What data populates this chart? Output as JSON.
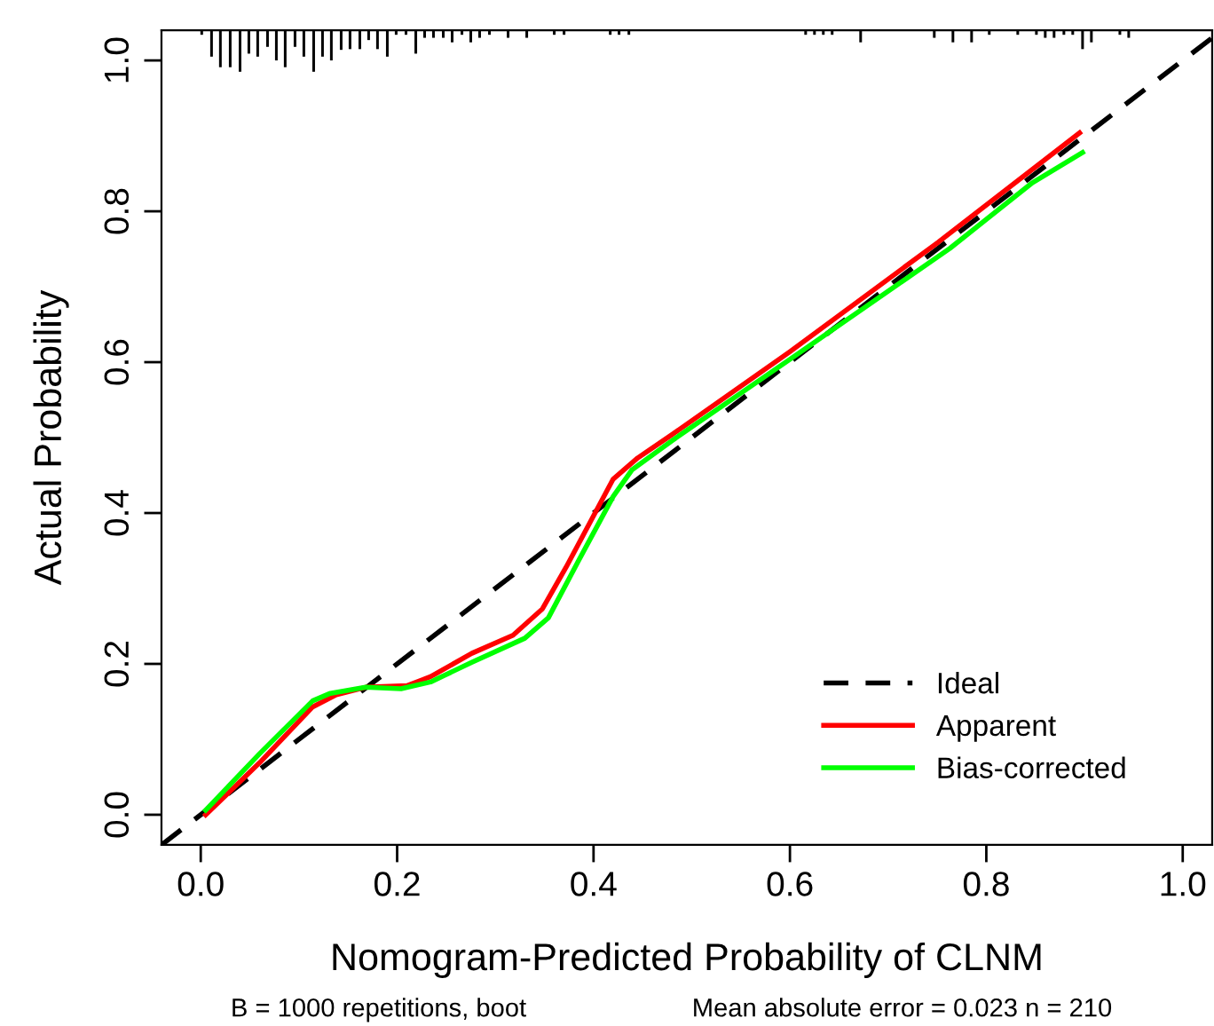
{
  "chart_data": {
    "type": "line",
    "xlabel": "Nomogram-Predicted Probability of CLNM",
    "ylabel": "Actual Probability",
    "annotations": [
      "B = 1000 repetitions, boot",
      "Mean absolute error = 0.023 n = 210"
    ],
    "xlim": [
      -0.04,
      1.03
    ],
    "ylim": [
      -0.04,
      1.04
    ],
    "xticks": [
      {
        "value": 0,
        "label": "0.0"
      },
      0.2,
      0.4,
      0.6,
      0.8,
      {
        "value": 1,
        "label": "1.0"
      }
    ],
    "yticks": [
      {
        "value": 0,
        "label": "0.0"
      },
      0.2,
      0.4,
      0.6,
      0.8,
      {
        "value": 1,
        "label": "1.0"
      }
    ],
    "grid": false,
    "legend": "bottom right",
    "series": [
      {
        "type": "bar",
        "color": "#000000",
        "base": [
          1.035,
          1.006,
          0.992,
          0.992,
          0.986,
          1.01,
          1.006,
          1.019,
          1.001,
          0.992,
          1.019,
          1.006,
          0.986,
          1.006,
          1.001,
          1.015,
          1.016,
          1.016,
          1.028,
          1.016,
          1.006,
          1.035,
          1.035,
          1.01,
          1.031,
          1.031,
          1.031,
          1.025,
          1.035,
          1.025,
          1.031,
          1.035,
          1.031,
          1.031,
          1.035,
          1.035,
          1.035,
          1.035,
          1.035,
          1.035,
          1.035,
          1.035,
          1.035,
          1.025,
          1.031,
          1.025,
          1.025,
          1.035,
          1.035,
          1.035,
          1.031,
          1.031,
          1.035,
          1.035,
          1.016,
          1.025,
          1.035,
          1.031
        ],
        "x": [
          0.001,
          0.011,
          0.02,
          0.03,
          0.04,
          0.049,
          0.058,
          0.068,
          0.077,
          0.086,
          0.096,
          0.105,
          0.115,
          0.124,
          0.133,
          0.143,
          0.152,
          0.162,
          0.171,
          0.18,
          0.19,
          0.199,
          0.209,
          0.219,
          0.228,
          0.237,
          0.247,
          0.256,
          0.266,
          0.275,
          0.284,
          0.294,
          0.313,
          0.332,
          0.36,
          0.37,
          0.417,
          0.426,
          0.436,
          0.616,
          0.625,
          0.634,
          0.643,
          0.672,
          0.747,
          0.766,
          0.785,
          0.803,
          0.832,
          0.851,
          0.86,
          0.869,
          0.879,
          0.888,
          0.898,
          0.907,
          0.936,
          0.945
        ],
        "values": [
          0.005,
          0.034,
          0.048,
          0.048,
          0.054,
          0.03,
          0.034,
          0.021,
          0.039,
          0.048,
          0.021,
          0.034,
          0.054,
          0.034,
          0.039,
          0.025,
          0.024,
          0.024,
          0.012,
          0.024,
          0.034,
          0.005,
          0.005,
          0.03,
          0.009,
          0.009,
          0.009,
          0.015,
          0.005,
          0.015,
          0.009,
          0.005,
          0.009,
          0.009,
          0.005,
          0.005,
          0.005,
          0.005,
          0.005,
          0.005,
          0.005,
          0.005,
          0.005,
          0.015,
          0.009,
          0.015,
          0.015,
          0.005,
          0.005,
          0.005,
          0.009,
          0.009,
          0.005,
          0.005,
          0.024,
          0.015,
          0.005,
          0.009
        ]
      },
      {
        "name": "Ideal",
        "color": "#000000",
        "line_style": "dashed",
        "x": [
          -0.04,
          1.03
        ],
        "values": [
          -0.04,
          1.03
        ]
      },
      {
        "name": "Apparent",
        "color": "#ff0000",
        "line_style": "solid",
        "x": [
          0.005,
          0.06,
          0.114,
          0.138,
          0.168,
          0.21,
          0.234,
          0.276,
          0.318,
          0.348,
          0.372,
          0.42,
          0.445,
          0.48,
          0.6,
          0.751,
          0.895
        ],
        "values": [
          0.0,
          0.069,
          0.143,
          0.159,
          0.169,
          0.171,
          0.183,
          0.214,
          0.238,
          0.273,
          0.328,
          0.445,
          0.473,
          0.504,
          0.614,
          0.759,
          0.904
        ]
      },
      {
        "name": "Bias-corrected",
        "color": "#00ff00",
        "line_style": "solid",
        "x": [
          0.005,
          0.06,
          0.114,
          0.132,
          0.168,
          0.204,
          0.234,
          0.276,
          0.33,
          0.354,
          0.384,
          0.42,
          0.439,
          0.48,
          0.607,
          0.763,
          0.847,
          0.898
        ],
        "values": [
          0.006,
          0.081,
          0.151,
          0.161,
          0.169,
          0.167,
          0.176,
          0.202,
          0.234,
          0.261,
          0.335,
          0.422,
          0.457,
          0.496,
          0.61,
          0.751,
          0.838,
          0.878
        ]
      }
    ]
  }
}
